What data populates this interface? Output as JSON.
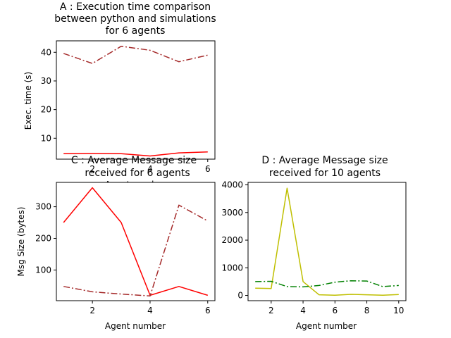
{
  "chart_data": [
    {
      "panel": "A",
      "type": "line",
      "title_lines": [
        "A : Execution time comparison",
        "between python and simulations",
        "for 6 agents"
      ],
      "xlabel": "Agent number",
      "ylabel": "Exec. time (s)",
      "x": [
        1,
        2,
        3,
        4,
        5,
        6
      ],
      "xlim": [
        0.75,
        6.25
      ],
      "ylim": [
        2.7,
        44.0
      ],
      "xticks": [
        2,
        4,
        6
      ],
      "yticks": [
        10,
        20,
        30,
        40
      ],
      "grid": false,
      "series": [
        {
          "values": [
            39.6,
            36.1,
            42.1,
            40.7,
            36.7,
            39.0
          ],
          "color": "#a52a2a",
          "style": "dashdot"
        },
        {
          "values": [
            4.6,
            4.7,
            4.6,
            3.8,
            4.9,
            5.2
          ],
          "color": "#ff0000",
          "style": "solid"
        }
      ]
    },
    {
      "panel": "C",
      "type": "line",
      "title_lines": [
        "C : Average Message size",
        "received for 6 agents"
      ],
      "xlabel": "Agent number",
      "ylabel": "Msg Size (bytes)",
      "x": [
        1,
        2,
        3,
        4,
        5,
        6
      ],
      "xlim": [
        0.75,
        6.25
      ],
      "ylim": [
        3,
        377
      ],
      "xticks": [
        2,
        4,
        6
      ],
      "yticks": [
        100,
        200,
        300
      ],
      "grid": false,
      "series": [
        {
          "values": [
            250,
            360,
            250,
            20,
            48,
            20
          ],
          "color": "#ff0000",
          "style": "solid"
        },
        {
          "values": [
            48,
            31,
            24,
            18,
            305,
            255
          ],
          "color": "#a52a2a",
          "style": "dashdot"
        }
      ]
    },
    {
      "panel": "D",
      "type": "line",
      "title_lines": [
        "D : Average Message size",
        "received for 10 agents"
      ],
      "xlabel": "Agent number",
      "ylabel": "",
      "x": [
        1,
        2,
        3,
        4,
        5,
        6,
        7,
        8,
        9,
        10
      ],
      "xlim": [
        0.55,
        10.45
      ],
      "ylim": [
        -190,
        4090
      ],
      "xticks": [
        2,
        4,
        6,
        8,
        10
      ],
      "yticks": [
        0,
        1000,
        2000,
        3000,
        4000
      ],
      "grid": false,
      "series": [
        {
          "values": [
            260,
            250,
            3880,
            500,
            25,
            5,
            40,
            25,
            5,
            35
          ],
          "color": "#bfbf00",
          "style": "solid"
        },
        {
          "values": [
            500,
            510,
            320,
            310,
            360,
            480,
            530,
            520,
            320,
            360
          ],
          "color": "#008000",
          "style": "dashdot"
        }
      ]
    }
  ]
}
